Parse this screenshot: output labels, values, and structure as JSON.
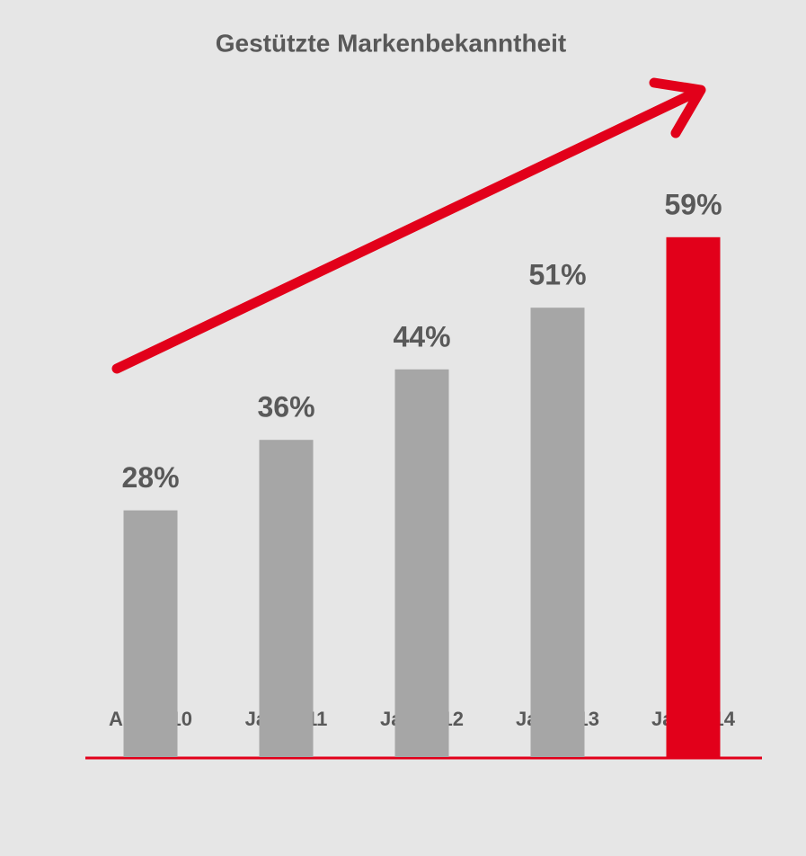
{
  "chart_data": {
    "type": "bar",
    "title": "Gestützte Markenbekanntheit",
    "categories": [
      "Apr 2010",
      "Jan 2011",
      "Jan 2012",
      "Jan 2013",
      "Jan 2014"
    ],
    "values": [
      28,
      36,
      44,
      51,
      59
    ],
    "value_labels": [
      "28%",
      "36%",
      "44%",
      "51%",
      "59%"
    ],
    "colors": [
      "#a6a6a6",
      "#a6a6a6",
      "#a6a6a6",
      "#a6a6a6",
      "#e2001a"
    ]
  }
}
